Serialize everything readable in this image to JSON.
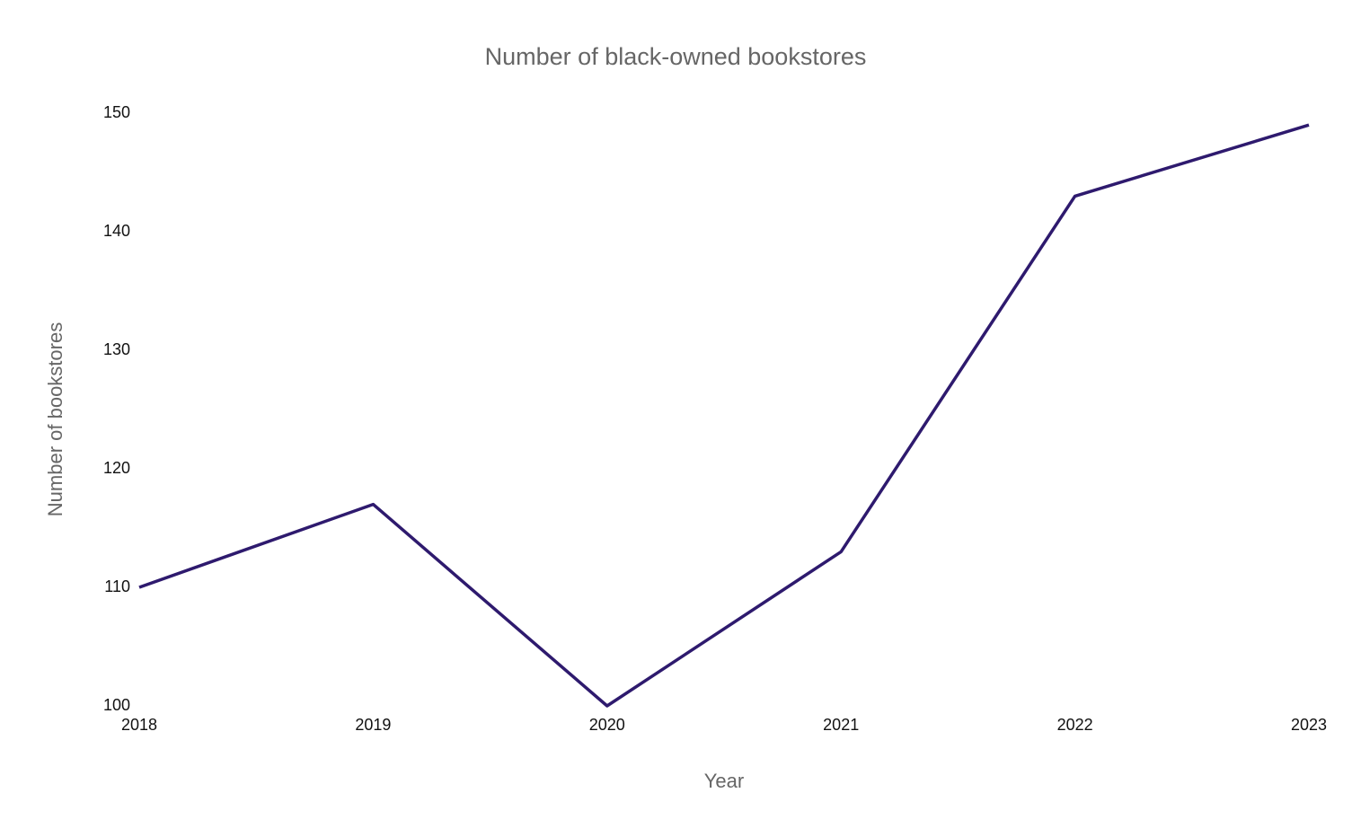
{
  "chart_data": {
    "type": "line",
    "title": "Number of black-owned bookstores",
    "x_label": "Year",
    "y_label": "Number of bookstores",
    "x": [
      2018,
      2019,
      2020,
      2021,
      2022,
      2023
    ],
    "series": [
      {
        "name": "Number of bookstores",
        "color": "#2e1a6e",
        "values": [
          110,
          117,
          100,
          113,
          143,
          149
        ]
      }
    ],
    "xlim": [
      2018,
      2023
    ],
    "xticks": [
      2018,
      2019,
      2020,
      2021,
      2022,
      2023
    ],
    "ylim": [
      100,
      150
    ],
    "yticks": [
      100,
      110,
      120,
      130,
      140,
      150
    ],
    "grid": false
  }
}
